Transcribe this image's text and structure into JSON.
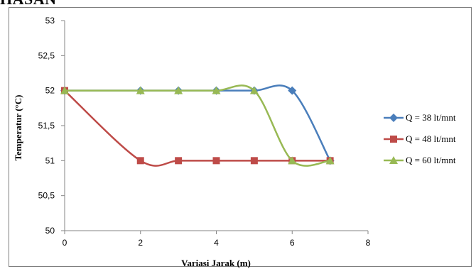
{
  "heading_fragment": "HASAN",
  "chart_data": {
    "type": "line",
    "title": "",
    "xlabel": "Variasi Jarak (m)",
    "ylabel": "Temperatur (°C)",
    "xlim": [
      0,
      8
    ],
    "ylim": [
      50,
      53
    ],
    "x_ticks": [
      "0",
      "2",
      "4",
      "6",
      "8"
    ],
    "y_ticks": [
      "50",
      "50,5",
      "51",
      "51,5",
      "52",
      "52,5",
      "53"
    ],
    "grid": false,
    "legend_position": "right",
    "series": [
      {
        "name": "Q = 38 lt/mnt",
        "color": "#4a7ebb",
        "marker": "diamond",
        "x": [
          0,
          2,
          3,
          4,
          5,
          6,
          7
        ],
        "y": [
          52,
          52,
          52,
          52,
          52,
          52,
          51
        ]
      },
      {
        "name": "Q = 48 lt/mnt",
        "color": "#be4b48",
        "marker": "square",
        "x": [
          0,
          2,
          3,
          4,
          5,
          6,
          7
        ],
        "y": [
          52,
          51,
          51,
          51,
          51,
          51,
          51
        ]
      },
      {
        "name": "Q = 60 lt/mnt",
        "color": "#98b954",
        "marker": "triangle",
        "x": [
          0,
          2,
          3,
          4,
          5,
          6,
          7
        ],
        "y": [
          52,
          52,
          52,
          52,
          52,
          51,
          51
        ]
      }
    ]
  }
}
